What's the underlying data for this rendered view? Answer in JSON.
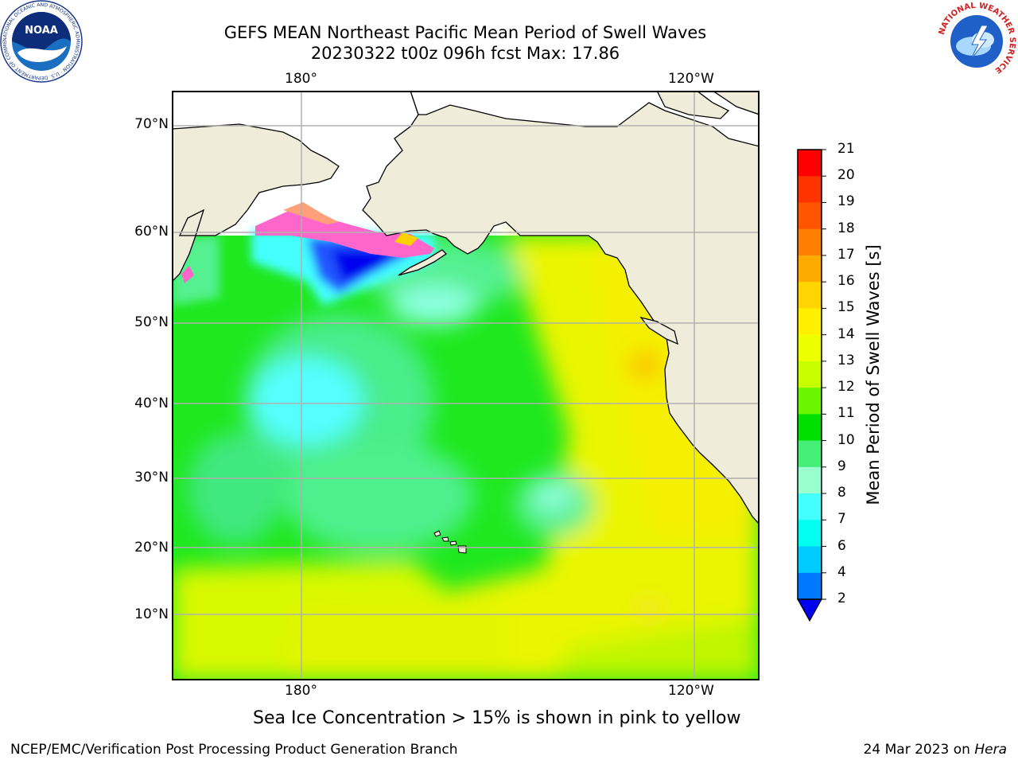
{
  "title": {
    "line1": "GEFS MEAN Northeast Pacific Mean Period of Swell Waves",
    "line2": "20230322 t00z 096h fcst   Max: 17.86"
  },
  "logos": {
    "left": {
      "text": "NOAA",
      "ring_text": "NATIONAL OCEANIC AND ATMOSPHERIC ADMINISTRATION · U.S. DEPARTMENT OF COMMERCE"
    },
    "right": {
      "ring_text": "NATIONAL WEATHER SERVICE"
    }
  },
  "map": {
    "lon_labels_top": [
      "180°",
      "120°W"
    ],
    "lon_labels_bottom": [
      "180°",
      "120°W"
    ],
    "lat_labels": [
      "70°N",
      "60°N",
      "50°N",
      "40°N",
      "30°N",
      "20°N",
      "10°N"
    ],
    "land_color": "#efedda",
    "ice_colors": [
      "#ff66cc",
      "#ffa07a",
      "#ffd700"
    ]
  },
  "colorbar": {
    "label": "Mean Period of Swell Waves [s]",
    "ticks": [
      "21",
      "20",
      "19",
      "18",
      "17",
      "16",
      "15",
      "14",
      "13",
      "12",
      "11",
      "10",
      "9",
      "8",
      "7",
      "6",
      "4",
      "2"
    ],
    "colors": [
      "#ff0000",
      "#ff3300",
      "#ff5500",
      "#ff8000",
      "#ffaa00",
      "#ffd400",
      "#fff000",
      "#eeff00",
      "#c8ff00",
      "#6cf500",
      "#00e000",
      "#44ee77",
      "#99ffcc",
      "#44ffff",
      "#00ffee",
      "#00ccff",
      "#0077ff"
    ],
    "under_color": "#0000ee"
  },
  "caption": "Sea Ice Concentration > 15% is shown in pink to yellow",
  "footer": {
    "left": "NCEP/EMC/Verification Post Processing Product Generation Branch",
    "right_prefix": "24 Mar 2023 on ",
    "right_italic": "Hera"
  }
}
